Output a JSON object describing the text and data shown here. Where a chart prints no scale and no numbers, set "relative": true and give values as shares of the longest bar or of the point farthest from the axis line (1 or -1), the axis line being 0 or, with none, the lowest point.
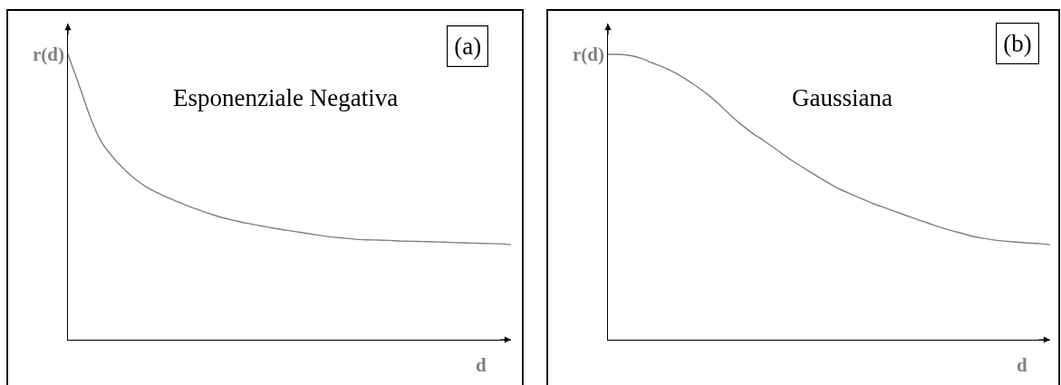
{
  "chart_data": [
    {
      "type": "line",
      "title": "Esponenziale Negativa",
      "xlabel": "d",
      "ylabel": "r(d)",
      "annotations": [
        "(a)"
      ],
      "relative": true,
      "categories": [
        null,
        null,
        null,
        null,
        null,
        null,
        null,
        null,
        null,
        null,
        null,
        null,
        null,
        null,
        null,
        null,
        null,
        null,
        null,
        null,
        null,
        null,
        null,
        null,
        null,
        null,
        null,
        null,
        null,
        null,
        null,
        null,
        null,
        null,
        null,
        null,
        null,
        null,
        null,
        null,
        null
      ],
      "series": [
        {
          "color": "#808080",
          "values": [
            1.0,
            0.893,
            0.781,
            0.694,
            0.642,
            0.6,
            0.565,
            0.537,
            0.516,
            0.498,
            0.482,
            0.466,
            0.452,
            0.439,
            0.427,
            0.418,
            0.409,
            0.402,
            0.395,
            0.388,
            0.382,
            0.376,
            0.37,
            0.364,
            0.359,
            0.356,
            0.352,
            0.35,
            0.349,
            0.348,
            0.346,
            0.345,
            0.344,
            0.343,
            0.342,
            0.34,
            0.339,
            0.338,
            0.337,
            0.336,
            0.333
          ]
        }
      ]
    },
    {
      "type": "line",
      "title": "Gaussiana",
      "xlabel": "d",
      "ylabel": "r(d)",
      "annotations": [
        "(b)"
      ],
      "relative": true,
      "categories": [
        null,
        null,
        null,
        null,
        null,
        null,
        null,
        null,
        null,
        null,
        null,
        null,
        null,
        null,
        null,
        null,
        null,
        null,
        null,
        null,
        null,
        null,
        null,
        null,
        null,
        null,
        null,
        null,
        null,
        null,
        null,
        null,
        null,
        null,
        null,
        null,
        null,
        null,
        null,
        null,
        null
      ],
      "series": [
        {
          "color": "#808080",
          "values": [
            1.0,
            1.0,
            0.996,
            0.986,
            0.97,
            0.955,
            0.937,
            0.914,
            0.888,
            0.86,
            0.827,
            0.79,
            0.756,
            0.726,
            0.7,
            0.673,
            0.645,
            0.619,
            0.595,
            0.571,
            0.548,
            0.527,
            0.51,
            0.493,
            0.477,
            0.463,
            0.449,
            0.435,
            0.421,
            0.408,
            0.395,
            0.383,
            0.373,
            0.362,
            0.355,
            0.349,
            0.345,
            0.342,
            0.339,
            0.337,
            0.333
          ]
        }
      ]
    }
  ]
}
